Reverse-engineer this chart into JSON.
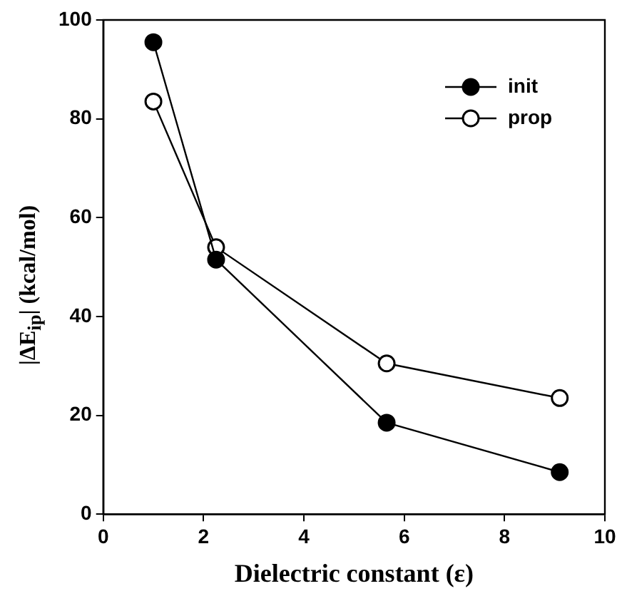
{
  "chart_data": {
    "type": "line",
    "xlabel": "Dielectric constant (ε)",
    "ylabel": "|ΔE$_{ip}$| (kcal/mol)",
    "x": [
      1,
      2.25,
      5.65,
      9.1
    ],
    "series": [
      {
        "name": "init",
        "color": "#000000",
        "values": [
          95.5,
          51.5,
          18.5,
          8.5
        ]
      },
      {
        "name": "prop",
        "color": "#ffffff",
        "values": [
          83.5,
          54,
          30.5,
          23.5
        ]
      }
    ],
    "xlim": [
      0,
      10
    ],
    "xticks": [
      0,
      2,
      4,
      6,
      8,
      10
    ],
    "ylim": [
      0,
      100
    ],
    "yticks": [
      0,
      20,
      40,
      60,
      80,
      100
    ],
    "grid": false,
    "legend": "top right",
    "marker": "circle",
    "line_style": "solid"
  }
}
